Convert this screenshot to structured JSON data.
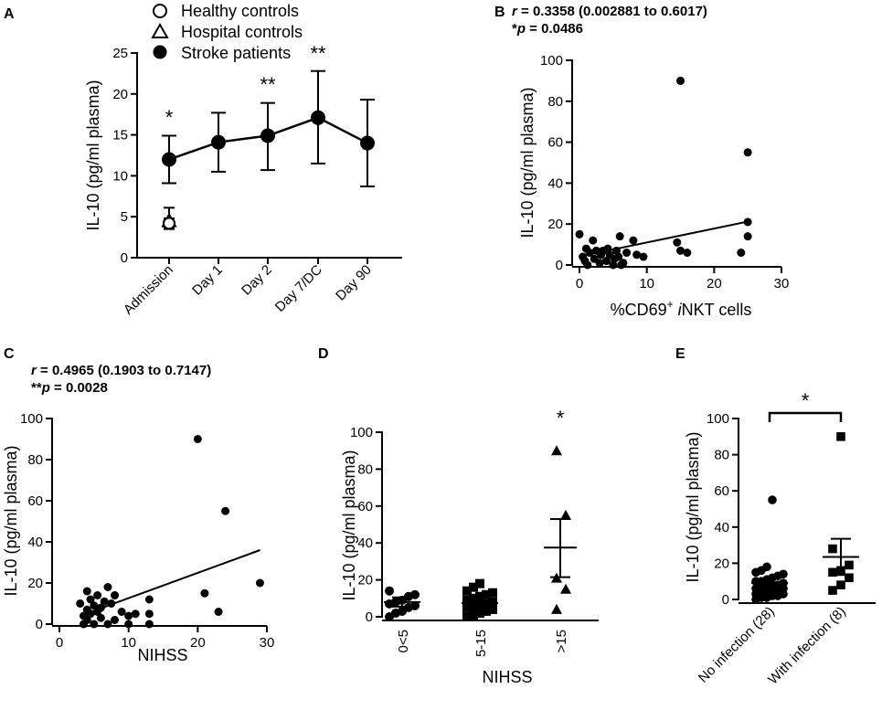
{
  "panels": {
    "A": {
      "letter": "A"
    },
    "B": {
      "letter": "B"
    },
    "C": {
      "letter": "C"
    },
    "D": {
      "letter": "D"
    },
    "E": {
      "letter": "E"
    }
  },
  "chart_data": [
    {
      "id": "A",
      "type": "line",
      "ylabel": "IL-10 (pg/ml plasma)",
      "ylim": [
        0,
        25
      ],
      "yticks": [
        0,
        5,
        10,
        15,
        20,
        25
      ],
      "categories": [
        "Admission",
        "Day 1",
        "Day 2",
        "Day 7/DC",
        "Day 90"
      ],
      "legend": [
        "Healthy controls",
        "Hospital controls",
        "Stroke patients"
      ],
      "series": [
        {
          "name": "Stroke patients",
          "marker": "filled-circle",
          "values": [
            12.0,
            14.1,
            14.9,
            17.1,
            14.0
          ],
          "err_low": [
            9.1,
            10.5,
            10.7,
            11.5,
            8.7
          ],
          "err_high": [
            14.9,
            17.7,
            18.9,
            22.8,
            19.3
          ]
        },
        {
          "name": "Healthy controls",
          "marker": "open-circle",
          "index": 0,
          "value": 4.2,
          "err_low": 3.5,
          "err_high": 4.8
        },
        {
          "name": "Hospital controls",
          "marker": "open-triangle",
          "index": 0,
          "value": 4.5,
          "err_low": 3.6,
          "err_high": 6.1
        }
      ],
      "significance": [
        {
          "index": 0,
          "label": "*",
          "y": 16.3
        },
        {
          "index": 2,
          "label": "**",
          "y": 20.3
        },
        {
          "index": 3,
          "label": "**",
          "y": 24.1
        }
      ]
    },
    {
      "id": "B",
      "type": "scatter",
      "stat_r_prefix": "r",
      "stat_r_rest": " = 0.3358 (0.002881 to 0.6017)",
      "stat_p_prefix": "*",
      "stat_p_italic": "p",
      "stat_p_rest": " = 0.0486",
      "xlabel_pre": "%CD69",
      "xlabel_sup": "+",
      "xlabel_ital": " i",
      "xlabel_post": "NKT cells",
      "ylabel": "IL-10 (pg/ml plasma)",
      "xlim": [
        0,
        30
      ],
      "xticks": [
        0,
        10,
        20,
        30
      ],
      "ylim": [
        0,
        100
      ],
      "yticks": [
        0,
        20,
        40,
        60,
        80,
        100
      ],
      "points": [
        [
          0.0,
          15
        ],
        [
          0.5,
          4
        ],
        [
          0.8,
          2
        ],
        [
          1.0,
          8
        ],
        [
          1.2,
          0
        ],
        [
          1.5,
          6
        ],
        [
          2.0,
          12
        ],
        [
          2.2,
          3
        ],
        [
          2.5,
          7
        ],
        [
          3.0,
          1
        ],
        [
          3.2,
          5
        ],
        [
          3.5,
          7
        ],
        [
          4.0,
          2
        ],
        [
          4.2,
          8
        ],
        [
          4.5,
          5
        ],
        [
          5.0,
          0
        ],
        [
          5.2,
          3
        ],
        [
          5.5,
          7
        ],
        [
          5.8,
          4
        ],
        [
          6.0,
          14
        ],
        [
          6.2,
          0
        ],
        [
          6.5,
          1
        ],
        [
          7.0,
          6
        ],
        [
          8.0,
          12
        ],
        [
          8.5,
          5
        ],
        [
          9.5,
          4
        ],
        [
          15.0,
          90
        ],
        [
          14.5,
          11
        ],
        [
          15.0,
          7
        ],
        [
          16.0,
          6
        ],
        [
          24.0,
          6
        ],
        [
          25.0,
          55
        ],
        [
          25.0,
          21
        ],
        [
          25.0,
          14
        ]
      ],
      "fit": {
        "x": [
          0,
          25
        ],
        "y": [
          4.2,
          21.2
        ]
      }
    },
    {
      "id": "C",
      "type": "scatter",
      "stat_r_prefix": "r",
      "stat_r_rest": " = 0.4965 (0.1903 to 0.7147)",
      "stat_p_prefix": "**",
      "stat_p_italic": "p",
      "stat_p_rest": " = 0.0028",
      "xlabel": "NIHSS",
      "ylabel": "IL-10 (pg/ml plasma)",
      "xlim": [
        0,
        30
      ],
      "xticks": [
        0,
        10,
        20,
        30
      ],
      "ylim": [
        0,
        100
      ],
      "yticks": [
        0,
        20,
        40,
        60,
        80,
        100
      ],
      "points": [
        [
          3,
          10
        ],
        [
          3.5,
          4
        ],
        [
          3.5,
          0
        ],
        [
          4,
          16
        ],
        [
          4,
          7
        ],
        [
          4,
          2
        ],
        [
          4.5,
          12
        ],
        [
          4.5,
          5
        ],
        [
          5,
          9
        ],
        [
          5,
          0
        ],
        [
          5.5,
          14
        ],
        [
          5.5,
          6
        ],
        [
          6,
          8
        ],
        [
          6,
          3
        ],
        [
          6.5,
          11
        ],
        [
          7,
          18
        ],
        [
          7,
          0
        ],
        [
          7.5,
          10
        ],
        [
          8,
          14
        ],
        [
          8,
          2
        ],
        [
          9,
          6
        ],
        [
          10,
          4
        ],
        [
          10,
          0
        ],
        [
          11,
          5
        ],
        [
          13,
          12
        ],
        [
          13,
          5
        ],
        [
          13,
          0
        ],
        [
          20,
          90
        ],
        [
          21,
          15
        ],
        [
          23,
          6
        ],
        [
          24,
          55
        ],
        [
          29,
          20
        ]
      ],
      "fit": {
        "x": [
          3,
          29
        ],
        "y": [
          4.0,
          36.0
        ]
      }
    },
    {
      "id": "D",
      "type": "scatter",
      "xlabel": "NIHSS",
      "ylabel": "IL-10 (pg/ml plasma)",
      "ylim": [
        0,
        100
      ],
      "yticks": [
        0,
        20,
        40,
        60,
        80,
        100
      ],
      "categories": [
        "0<5",
        "5-15",
        ">15"
      ],
      "groups": [
        {
          "marker": "circle",
          "mean": 8.0,
          "sem_low": 5.5,
          "sem_high": 10.5,
          "points": [
            0,
            2,
            3,
            5,
            6,
            7,
            8,
            9,
            11,
            12,
            14
          ]
        },
        {
          "marker": "square",
          "mean": 7.5,
          "sem_low": 6.0,
          "sem_high": 9.0,
          "points": [
            0,
            1,
            2,
            3,
            4,
            5,
            5,
            6,
            7,
            8,
            9,
            10,
            11,
            12,
            13,
            14,
            16,
            18
          ]
        },
        {
          "marker": "triangle",
          "mean": 37.5,
          "sem_low": 21.5,
          "sem_high": 53.0,
          "points": [
            4,
            15,
            21,
            55,
            90
          ]
        }
      ],
      "significance": [
        {
          "index": 2,
          "label": "*",
          "y": 104
        }
      ]
    },
    {
      "id": "E",
      "type": "scatter",
      "ylabel": "IL-10 (pg/ml plasma)",
      "ylim": [
        0,
        100
      ],
      "yticks": [
        0,
        20,
        40,
        60,
        80,
        100
      ],
      "categories": [
        "No infection (28)",
        "With infection (8)"
      ],
      "groups": [
        {
          "marker": "circle",
          "mean": 9.0,
          "sem_low": 6.5,
          "sem_high": 11.5,
          "points": [
            0,
            1,
            1,
            2,
            2,
            3,
            3,
            4,
            4,
            5,
            5,
            6,
            6,
            7,
            7,
            8,
            8,
            9,
            10,
            10,
            11,
            12,
            13,
            14,
            15,
            16,
            18,
            55
          ]
        },
        {
          "marker": "square",
          "mean": 23.5,
          "sem_low": 13.5,
          "sem_high": 33.5,
          "points": [
            5,
            8,
            12,
            15,
            16,
            19,
            28,
            90
          ]
        }
      ],
      "significance": {
        "label": "*",
        "y": 100
      }
    }
  ]
}
